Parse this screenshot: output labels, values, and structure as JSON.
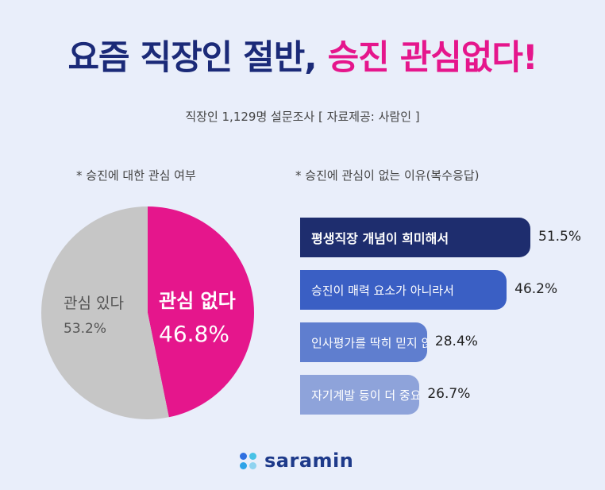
{
  "title": {
    "part1": "요즘 직장인 절반, ",
    "part2": "승진 관심없다!"
  },
  "subtitle": "직장인 1,129명 설문조사 [ 자료제공: 사람인 ]",
  "colors": {
    "background": "#e9eefa",
    "title_dark": "#1b2a78",
    "accent_pink": "#e5168c",
    "pie_gray": "#c6c6c6",
    "bar_colors": [
      "#1e2d6e",
      "#3a5fc4",
      "#5f7ecf",
      "#8ea3da"
    ],
    "logo_dot_colors": [
      "#2f6fe0",
      "#48c2e6",
      "#2ea3e8",
      "#8fd3f0"
    ]
  },
  "chart_data": [
    {
      "type": "pie",
      "title": "* 승진에 대한 관심 여부",
      "slices": [
        {
          "label": "관심 없다",
          "value": 46.8,
          "display": "46.8%",
          "color": "#e5168c"
        },
        {
          "label": "관심 있다",
          "value": 53.2,
          "display": "53.2%",
          "color": "#c6c6c6"
        }
      ]
    },
    {
      "type": "bar",
      "orientation": "horizontal",
      "title": "* 승진에 관심이 없는 이유(복수응답)",
      "categories": [
        "평생직장 개념이 희미해서",
        "승진이 매력 요소가 아니라서",
        "인사평가를 딱히 믿지 않아서",
        "자기계발 등이 더 중요해서"
      ],
      "values": [
        51.5,
        46.2,
        28.4,
        26.7
      ],
      "value_labels": [
        "51.5%",
        "46.2%",
        "28.4%",
        "26.7%"
      ],
      "xlim": [
        0,
        51.5
      ]
    }
  ],
  "logo": {
    "text": "saramin",
    "icon": "saramin-dots-icon"
  }
}
